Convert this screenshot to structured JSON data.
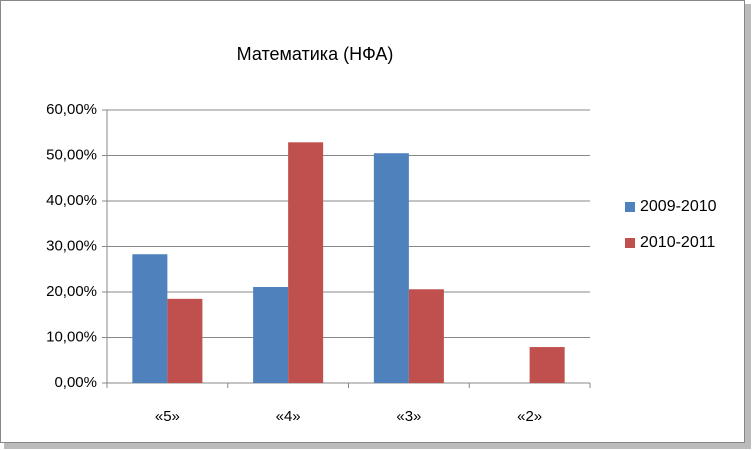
{
  "chart_data": {
    "type": "bar",
    "title": "Математика  (НФА)",
    "categories": [
      "«5»",
      "«4»",
      "«3»",
      "«2»"
    ],
    "series": [
      {
        "name": "2009-2010",
        "color": "#4f81bd",
        "values": [
          28.3,
          21.1,
          50.5,
          0
        ]
      },
      {
        "name": "2010-2011",
        "color": "#c0504d",
        "values": [
          18.5,
          52.9,
          20.6,
          7.9
        ]
      }
    ],
    "ylim": [
      0,
      60
    ],
    "yticks": [
      {
        "value": 0,
        "label": "0,00%"
      },
      {
        "value": 10,
        "label": "10,00%"
      },
      {
        "value": 20,
        "label": "20,00%"
      },
      {
        "value": 30,
        "label": "30,00%"
      },
      {
        "value": 40,
        "label": "40,00%"
      },
      {
        "value": 50,
        "label": "50,00%"
      },
      {
        "value": 60,
        "label": "60,00%"
      }
    ],
    "grid": true,
    "legend": "right"
  }
}
